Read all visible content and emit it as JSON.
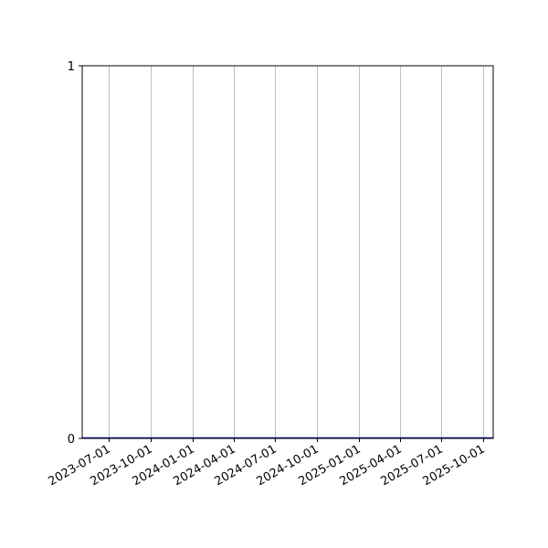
{
  "chart_data": {
    "type": "line",
    "title": "",
    "xlabel": "",
    "ylabel": "",
    "xlim": [
      "2023-05-04",
      "2025-10-23"
    ],
    "ylim": [
      0,
      1
    ],
    "grid": "x-axis vertical gridlines",
    "x_ticks": [
      "2023-07-01",
      "2023-10-01",
      "2024-01-01",
      "2024-04-01",
      "2024-07-01",
      "2024-10-01",
      "2025-01-01",
      "2025-04-01",
      "2025-07-01",
      "2025-10-01"
    ],
    "y_ticks": [
      "0",
      "1"
    ],
    "series": [
      {
        "color": "#0000cc",
        "x": [
          "2023-05-04",
          "2025-10-23"
        ],
        "y": [
          0,
          0
        ]
      }
    ]
  }
}
